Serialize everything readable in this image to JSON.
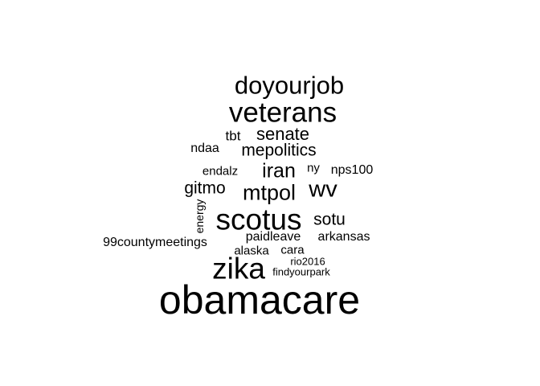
{
  "word_cloud": {
    "words": [
      "obamacare",
      "zika",
      "scotus",
      "veterans",
      "doyourjob",
      "wv",
      "mtpol",
      "iran",
      "senate",
      "mepolitics",
      "gitmo",
      "sotu",
      "tbt",
      "ndaa",
      "endalz",
      "ny",
      "nps100",
      "energy",
      "paidleave",
      "arkansas",
      "99countymeetings",
      "alaska",
      "cara",
      "rio2016",
      "findyourpark"
    ],
    "text_color": "#000000",
    "background_color": "#ffffff"
  }
}
